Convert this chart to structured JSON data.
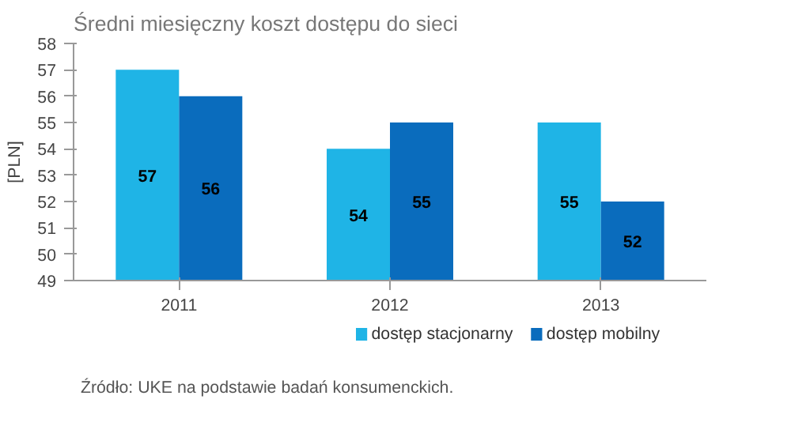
{
  "chart_data": {
    "type": "bar",
    "title": "Średni miesięczny koszt dostępu do sieci",
    "ylabel": "[PLN]",
    "categories": [
      "2011",
      "2012",
      "2013"
    ],
    "series": [
      {
        "name": "dostęp stacjonarny",
        "color": "#1fb4e6",
        "values": [
          57,
          54,
          55
        ]
      },
      {
        "name": "dostęp mobilny",
        "color": "#0a6cbd",
        "values": [
          56,
          55,
          52
        ]
      }
    ],
    "ylim": [
      49,
      58
    ],
    "yticks": [
      49,
      50,
      51,
      52,
      53,
      54,
      55,
      56,
      57,
      58
    ],
    "grid": false,
    "legend": "bottom",
    "data_labels": true,
    "annotations": [
      "Źródło: UKE na podstawie badań konsumenckich."
    ]
  }
}
